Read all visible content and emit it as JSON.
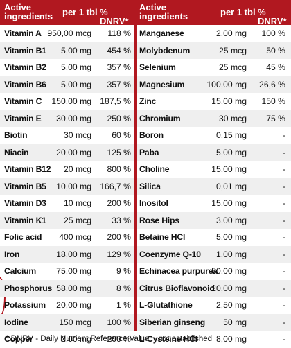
{
  "header": {
    "ingredients": "Active\ningredients",
    "per_tbl": "per 1 tbl",
    "dnrv": "% DNRV*"
  },
  "left_rows": [
    {
      "name": "Vitamin A",
      "amount": "950,00 mcg",
      "dnrv": "118 %"
    },
    {
      "name": "Vitamin B1",
      "amount": "5,00 mg",
      "dnrv": "454 %"
    },
    {
      "name": "Vitamin B2",
      "amount": "5,00 mg",
      "dnrv": "357 %"
    },
    {
      "name": "Vitamin B6",
      "amount": "5,00 mg",
      "dnrv": "357 %"
    },
    {
      "name": "Vitamin C",
      "amount": "150,00 mg",
      "dnrv": "187,5 %"
    },
    {
      "name": "Vitamin E",
      "amount": "30,00 mg",
      "dnrv": "250 %"
    },
    {
      "name": "Biotin",
      "amount": "30 mcg",
      "dnrv": "60 %"
    },
    {
      "name": "Niacin",
      "amount": "20,00 mg",
      "dnrv": "125 %"
    },
    {
      "name": "Vitamin B12",
      "amount": "20 mcg",
      "dnrv": "800 %"
    },
    {
      "name": "Vitamin B5",
      "amount": "10,00 mg",
      "dnrv": "166,7 %"
    },
    {
      "name": "Vitamin D3",
      "amount": "10 mcg",
      "dnrv": "200 %"
    },
    {
      "name": "Vitamin K1",
      "amount": "25 mcg",
      "dnrv": "33 %"
    },
    {
      "name": "Folic acid",
      "amount": "400 mcg",
      "dnrv": "200 %"
    },
    {
      "name": "Iron",
      "amount": "18,00 mg",
      "dnrv": "129 %"
    },
    {
      "name": "Calcium",
      "amount": "75,00 mg",
      "dnrv": "9 %"
    },
    {
      "name": "Phosphorus",
      "amount": "58,00 mg",
      "dnrv": "8 %"
    },
    {
      "name": "Potassium",
      "amount": "20,00 mg",
      "dnrv": "1 %"
    },
    {
      "name": "Iodine",
      "amount": "150 mcg",
      "dnrv": "100 %"
    },
    {
      "name": "Copper",
      "amount": "2,00 mg",
      "dnrv": "200 %"
    }
  ],
  "right_rows": [
    {
      "name": "Manganese",
      "amount": "2,00 mg",
      "dnrv": "100 %"
    },
    {
      "name": "Molybdenum",
      "amount": "25 mcg",
      "dnrv": "50 %"
    },
    {
      "name": "Selenium",
      "amount": "25 mcg",
      "dnrv": "45 %"
    },
    {
      "name": "Magnesium",
      "amount": "100,00 mg",
      "dnrv": "26,6 %"
    },
    {
      "name": "Zinc",
      "amount": "15,00 mg",
      "dnrv": "150 %"
    },
    {
      "name": "Chromium",
      "amount": "30 mcg",
      "dnrv": "75 %"
    },
    {
      "name": "Boron",
      "amount": "0,15 mg",
      "dnrv": "-"
    },
    {
      "name": "Paba",
      "amount": "5,00 mg",
      "dnrv": "-"
    },
    {
      "name": "Choline",
      "amount": "15,00 mg",
      "dnrv": "-"
    },
    {
      "name": "Silica",
      "amount": "0,01 mg",
      "dnrv": "-"
    },
    {
      "name": "Inositol",
      "amount": "15,00 mg",
      "dnrv": "-"
    },
    {
      "name": "Rose Hips",
      "amount": "3,00 mg",
      "dnrv": "-"
    },
    {
      "name": "Betaine HCl",
      "amount": "5,00 mg",
      "dnrv": "-"
    },
    {
      "name": "Coenzyme Q-10",
      "amount": "1,00 mg",
      "dnrv": "-"
    },
    {
      "name": "Echinacea purpurea",
      "amount": "50,00 mg",
      "dnrv": "-"
    },
    {
      "name": "Citrus Bioflavonoid",
      "amount": "20,00 mg",
      "dnrv": "-"
    },
    {
      "name": "L-Glutathione",
      "amount": "2,50 mg",
      "dnrv": "-"
    },
    {
      "name": "Siberian ginseng",
      "amount": "50 mg",
      "dnrv": "-"
    },
    {
      "name": "L-Cysteine HCl",
      "amount": "8,00 mg",
      "dnrv": "-"
    }
  ],
  "footnote": "* DNRV - Daily Nutrient Reference Value; - not established",
  "colors": {
    "accent": "#b11820",
    "stripe": "#efefef"
  }
}
